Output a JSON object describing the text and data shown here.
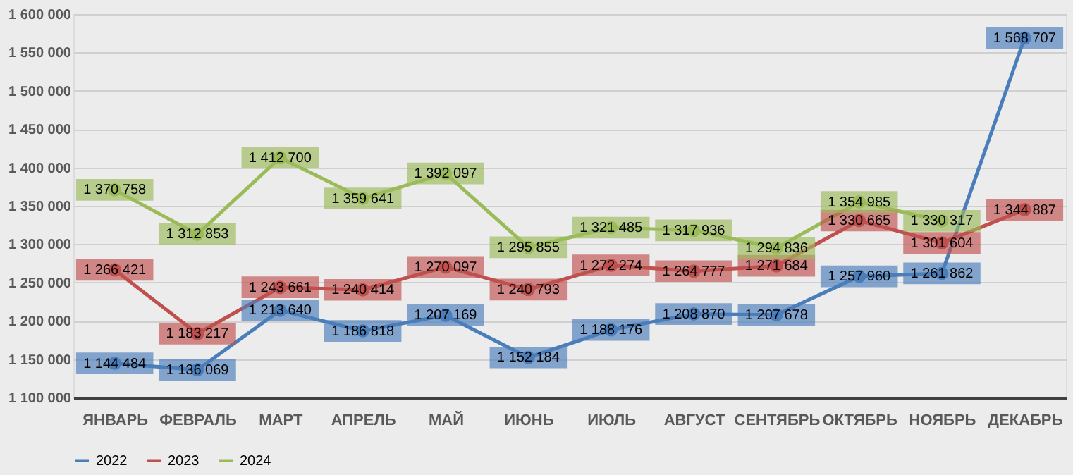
{
  "chart_data": {
    "type": "line",
    "categories": [
      "ЯНВАРЬ",
      "ФЕВРАЛЬ",
      "МАРТ",
      "АПРЕЛЬ",
      "МАЙ",
      "ИЮНЬ",
      "ИЮЛЬ",
      "АВГУСТ",
      "СЕНТЯБРЬ",
      "ОКТЯБРЬ",
      "НОЯБРЬ",
      "ДЕКАБРЬ"
    ],
    "series": [
      {
        "name": "2022",
        "color": "#4a7ebb",
        "values": [
          1144484,
          1136069,
          1213640,
          1186818,
          1207169,
          1152184,
          1188176,
          1208870,
          1207678,
          1257960,
          1261862,
          1568707
        ],
        "value_labels": [
          "1 144 484",
          "1 136 069",
          "1 213 640",
          "1 186 818",
          "1 207 169",
          "1 152 184",
          "1 188 176",
          "1 208 870",
          "1 207 678",
          "1 257 960",
          "1 261 862",
          "1 568 707"
        ]
      },
      {
        "name": "2023",
        "color": "#c0504d",
        "values": [
          1266421,
          1183217,
          1243661,
          1240414,
          1270097,
          1240793,
          1272274,
          1264777,
          1271684,
          1330665,
          1301604,
          1344887
        ],
        "value_labels": [
          "1 266 421",
          "1 183 217",
          "1 243 661",
          "1 240 414",
          "1 270 097",
          "1 240 793",
          "1 272 274",
          "1 264 777",
          "1 271 684",
          "1 330 665",
          "1 301 604",
          "1 344 887"
        ]
      },
      {
        "name": "2024",
        "color": "#9bbb59",
        "values": [
          1370758,
          1312853,
          1412700,
          1359641,
          1392097,
          1295855,
          1321485,
          1317936,
          1294836,
          1354985,
          1330317,
          null
        ],
        "value_labels": [
          "1 370 758",
          "1 312 853",
          "1 412 700",
          "1 359 641",
          "1 392 097",
          "1 295 855",
          "1 321 485",
          "1 317 936",
          "1 294 836",
          "1 354 985",
          "1 330 317",
          null
        ]
      }
    ],
    "ylim": [
      1100000,
      1600000
    ],
    "yticks": [
      {
        "value": 1100000,
        "label": "1 100 000"
      },
      {
        "value": 1150000,
        "label": "1 150 000"
      },
      {
        "value": 1200000,
        "label": "1 200 000"
      },
      {
        "value": 1250000,
        "label": "1 250 000"
      },
      {
        "value": 1300000,
        "label": "1 300 000"
      },
      {
        "value": 1350000,
        "label": "1 350 000"
      },
      {
        "value": 1400000,
        "label": "1 400 000"
      },
      {
        "value": 1450000,
        "label": "1 450 000"
      },
      {
        "value": 1500000,
        "label": "1 500 000"
      },
      {
        "value": 1550000,
        "label": "1 550 000"
      },
      {
        "value": 1600000,
        "label": "1 600 000"
      }
    ],
    "grid": "y",
    "legend": "bottom",
    "marker": "circle",
    "line_style": "solid"
  }
}
